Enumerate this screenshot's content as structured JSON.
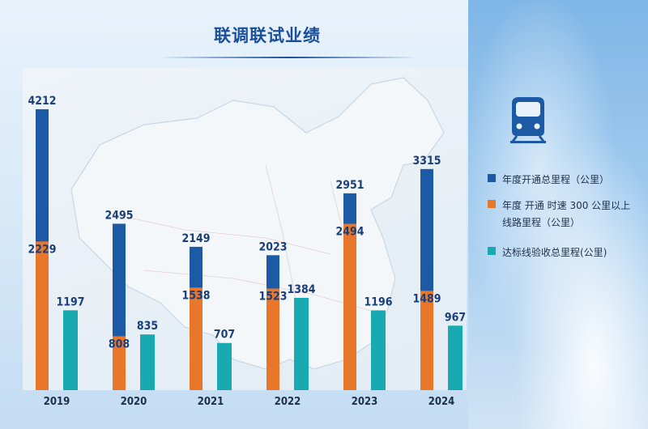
{
  "title": "联调联试业绩",
  "icon": "train-front-icon",
  "colors": {
    "series1": "#1d5aa6",
    "series2": "#e8762b",
    "series3": "#18aab0",
    "label": "#1a3f7a",
    "axis_text": "#1d2f4a"
  },
  "legend": [
    {
      "text": "年度开通总里程（公里）"
    },
    {
      "text": "年度 开通 时速 300 公里以上线路里程（公里）"
    },
    {
      "text": "达标线验收总里程(公里)"
    }
  ],
  "chart_data": {
    "type": "bar",
    "title": "联调联试业绩",
    "categories": [
      "2019",
      "2020",
      "2021",
      "2022",
      "2023",
      "2024"
    ],
    "series": [
      {
        "name": "年度开通总里程（公里）",
        "values": [
          4212,
          2495,
          2149,
          2023,
          2951,
          3315
        ]
      },
      {
        "name": "年度 开通 时速 300 公里以上线路里程（公里）",
        "values": [
          2229,
          808,
          1538,
          1523,
          2494,
          1489
        ]
      },
      {
        "name": "达标线验收总里程(公里)",
        "values": [
          1197,
          835,
          707,
          1384,
          1196,
          967
        ]
      }
    ],
    "overlay": "series 2 bar drawn over series 1 bar in the same column",
    "ylim": [
      0,
      5000
    ],
    "grid": false,
    "legend_position": "right"
  }
}
